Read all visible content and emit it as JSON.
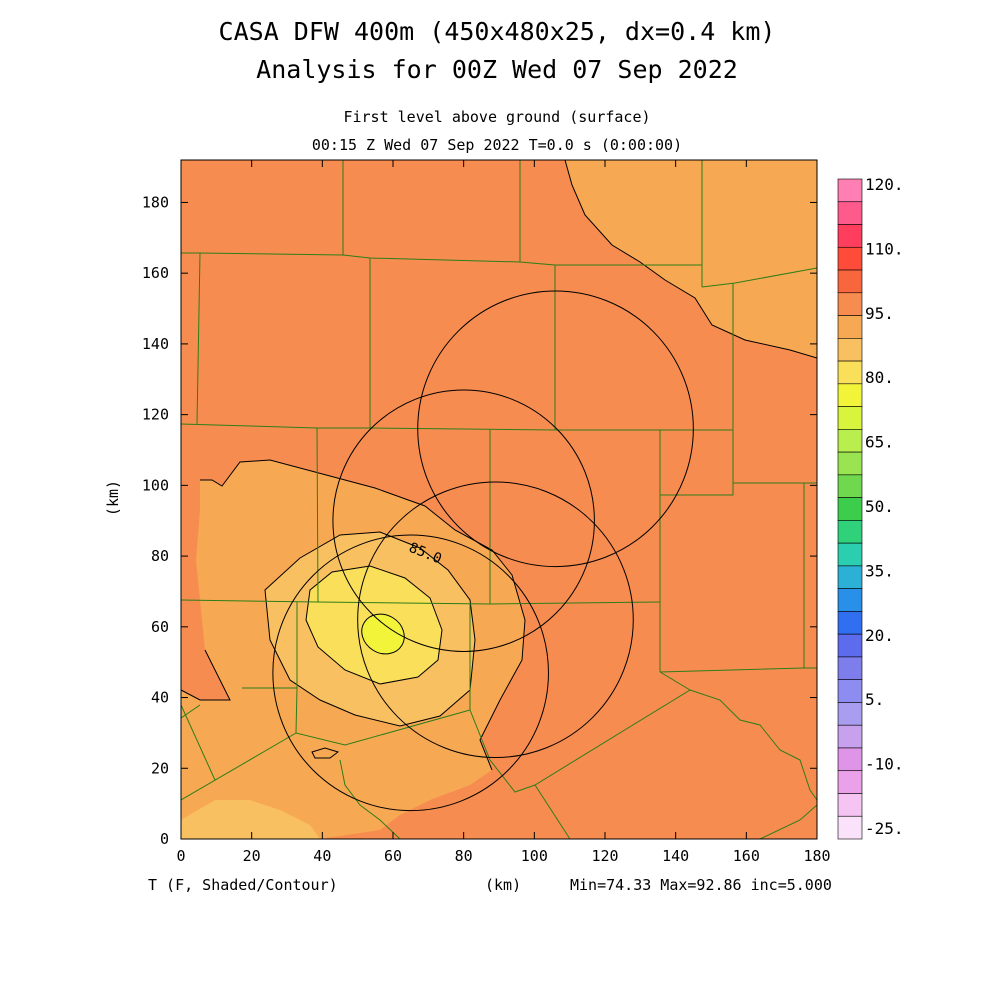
{
  "header": {
    "title_line1": "CASA DFW 400m (450x480x25, dx=0.4 km)",
    "title_line2": "Analysis for 00Z Wed 07 Sep 2022",
    "subtitle_line1": "First level above ground (surface)",
    "subtitle_line2": "00:15 Z Wed 07 Sep 2022    T=0.0 s (0:00:00)"
  },
  "footer": {
    "variable": "T (F, Shaded/Contour)",
    "unit": "(km)",
    "stats": "Min=74.33 Max=92.86 inc=5.000"
  },
  "colors": {
    "c90_95": "#F68C50",
    "c85_90": "#F7A852",
    "c80_85": "#F8C060",
    "c75_80": "#F9DF5A",
    "c70_75": "#F2F43A",
    "county_line": "#2E7D18"
  },
  "chart_data": {
    "type": "heatmap",
    "variable": "T",
    "units": "F",
    "x_label": "",
    "y_label": "(km)",
    "x_ticks": [
      0,
      20,
      40,
      60,
      80,
      100,
      120,
      140,
      160,
      180
    ],
    "y_ticks": [
      0,
      20,
      40,
      60,
      80,
      100,
      120,
      140,
      160,
      180
    ],
    "xlim": [
      0,
      180
    ],
    "ylim": [
      0,
      192
    ],
    "min": 74.33,
    "max": 92.86,
    "inc": 5.0,
    "contour_label": "85.0",
    "colorbar": {
      "labels": [
        "120.",
        "110.",
        "95.",
        "80.",
        "65.",
        "50.",
        "35.",
        "20.",
        "5.",
        "-10.",
        "-25."
      ],
      "colors": [
        "#FF7FB5",
        "#FF5A8C",
        "#FF3E5E",
        "#FF4C3A",
        "#F8663E",
        "#F68C50",
        "#F7A852",
        "#F8C060",
        "#F9DF5A",
        "#F2F43A",
        "#D8F43C",
        "#B8EE4E",
        "#9AE452",
        "#6FD84E",
        "#3CCD4C",
        "#2FD27A",
        "#2BCFB0",
        "#2DB0D6",
        "#2890E8",
        "#3070F0",
        "#5C6CEC",
        "#7E7DEC",
        "#8D8CF0",
        "#A89DEE",
        "#C7A0EE",
        "#DE95E8",
        "#EBA0EA",
        "#F6C4F2",
        "#FAE2FA"
      ]
    },
    "radar_rings": [
      {
        "center": [
          106,
          116
        ],
        "radius": 39
      },
      {
        "center": [
          80,
          90
        ],
        "radius": 37
      },
      {
        "center": [
          89,
          62
        ],
        "radius": 39
      },
      {
        "center": [
          65,
          47
        ],
        "radius": 39
      }
    ]
  }
}
